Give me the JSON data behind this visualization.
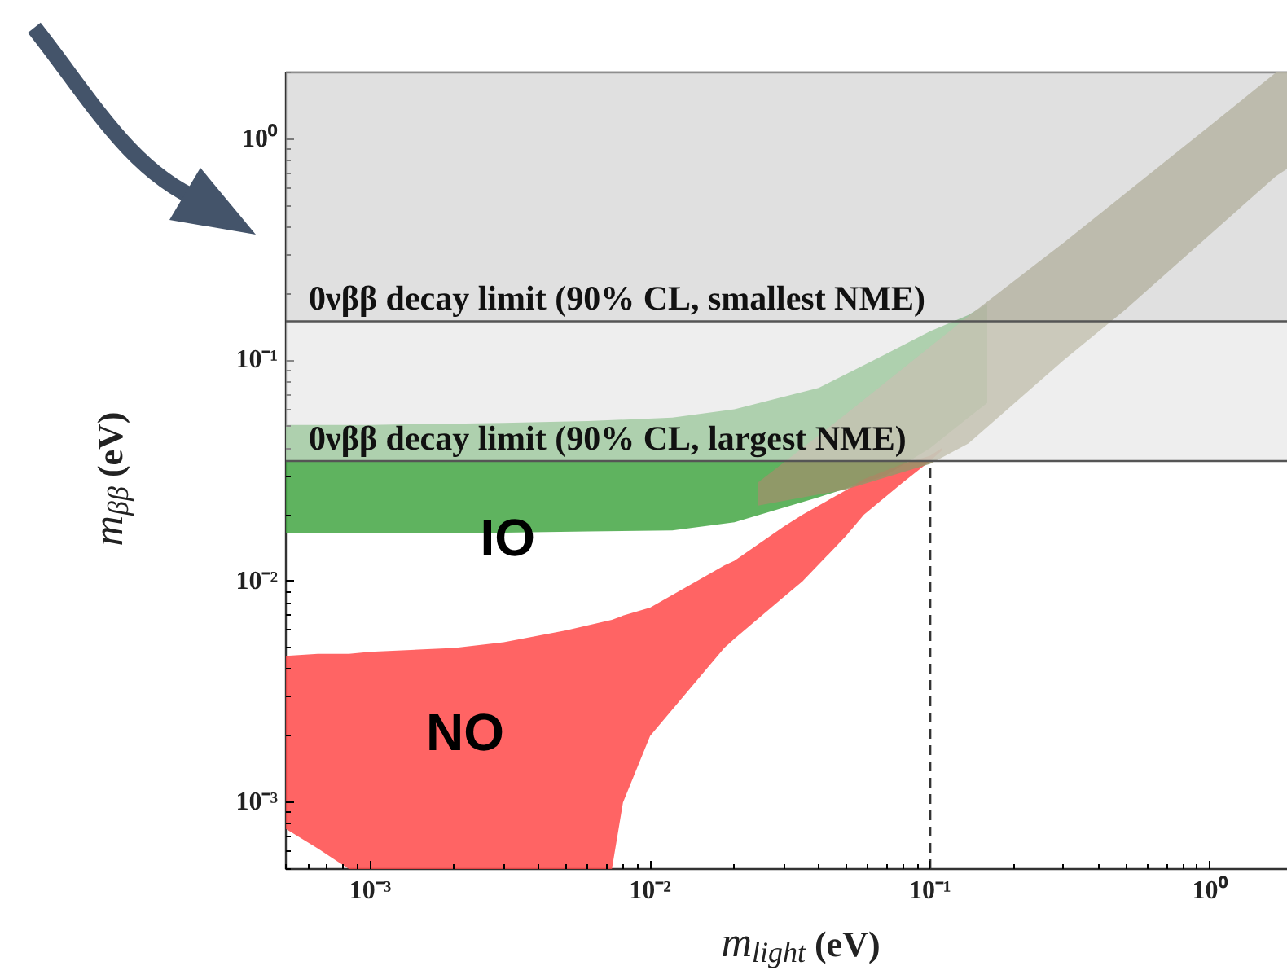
{
  "chart_data": {
    "type": "area",
    "xlabel": "m$_{light}$ (eV)",
    "ylabel": "m$_{ββ}$ (eV)",
    "log": "xy",
    "xlim": [
      0.0005,
      2
    ],
    "ylim": [
      0.0005,
      2
    ],
    "xticks": [
      {
        "value": 0.001,
        "label": "10⁻³"
      },
      {
        "value": 0.01,
        "label": "10⁻²"
      },
      {
        "value": 0.1,
        "label": "10⁻¹"
      },
      {
        "value": 1,
        "label": "10⁰"
      }
    ],
    "yticks": [
      {
        "value": 0.001,
        "label": "10⁻³"
      },
      {
        "value": 0.01,
        "label": "10⁻²"
      },
      {
        "value": 0.1,
        "label": "10⁻¹"
      },
      {
        "value": 1,
        "label": "10⁰"
      }
    ],
    "grid": false,
    "series": [
      {
        "color": "#5fb35f",
        "x": [
          0.0005,
          0.001,
          0.003,
          0.006,
          0.012,
          0.02,
          0.04,
          0.069,
          0.1,
          0.137,
          0.16
        ],
        "values": [
          null,
          null,
          null,
          null,
          null,
          null,
          null,
          null,
          null,
          null,
          null
        ],
        "upper": [
          0.051,
          0.051,
          0.052,
          0.053,
          0.055,
          0.06,
          0.075,
          0.106,
          0.135,
          0.16,
          0.18
        ],
        "lower": [
          0.0165,
          0.0165,
          0.0166,
          0.0168,
          0.017,
          0.0185,
          0.024,
          0.03,
          0.04,
          0.055,
          0.064
        ]
      },
      {
        "color": "#ff6464",
        "x": [
          0.0005,
          0.00065,
          0.00084,
          0.001,
          0.002,
          0.003,
          0.005,
          0.0073,
          0.008,
          0.01,
          0.0184,
          0.02,
          0.03,
          0.035,
          0.05,
          0.058,
          0.08,
          0.1,
          0.11
        ],
        "values": [
          null,
          null,
          null,
          null,
          null,
          null,
          null,
          null,
          null,
          null,
          null,
          null,
          null,
          null,
          null,
          null,
          null,
          null,
          null
        ],
        "upper": [
          0.0046,
          0.0047,
          0.0047,
          0.0048,
          0.005,
          0.0053,
          0.006,
          0.0067,
          0.007,
          0.0076,
          0.0118,
          0.0124,
          0.0177,
          0.02,
          0.0258,
          0.029,
          0.034,
          0.037,
          0.04
        ],
        "lower": [
          0.00076,
          0.00062,
          0.0005,
          0.0005,
          0.0005,
          0.0005,
          0.0005,
          0.0005,
          0.001,
          0.002,
          0.005,
          0.0055,
          0.0085,
          0.01,
          0.016,
          0.02,
          0.028,
          0.035,
          0.039
        ]
      },
      {
        "color": "#a8a480",
        "x": [
          0.0243,
          0.05,
          0.1,
          0.137,
          0.3,
          0.5,
          1,
          1.72,
          2
        ],
        "values": [
          null,
          null,
          null,
          null,
          null,
          null,
          null,
          null,
          null
        ],
        "upper": [
          0.028,
          0.057,
          0.115,
          0.158,
          0.34,
          0.57,
          1.15,
          2,
          2
        ],
        "lower": [
          0.022,
          0.026,
          0.034,
          0.042,
          0.1,
          0.17,
          0.37,
          0.68,
          0.77
        ]
      },
      {
        "type": "line",
        "color": "#333333",
        "line_style": "dashed",
        "x": [
          0.1,
          0.1
        ],
        "values": [
          0.0005,
          0.035
        ]
      }
    ],
    "bands": [
      {
        "axis": "y",
        "from": 0.15,
        "to": 2,
        "color": "#cccccc"
      },
      {
        "axis": "y",
        "from": 0.035,
        "to": 0.15,
        "color": "#e2e2e2"
      }
    ],
    "ref_lines": [
      {
        "axis": "y",
        "value": 0.15,
        "label": "0νββ decay limit (90% CL, smallest NME)",
        "color": "#555555"
      },
      {
        "axis": "y",
        "value": 0.035,
        "label": "0νββ decay limit (90% CL, largest NME)",
        "color": "#555555"
      }
    ],
    "annotations": [
      {
        "text": "IO",
        "x": 0.0031,
        "y": 0.0158
      },
      "NO"
    ]
  }
}
